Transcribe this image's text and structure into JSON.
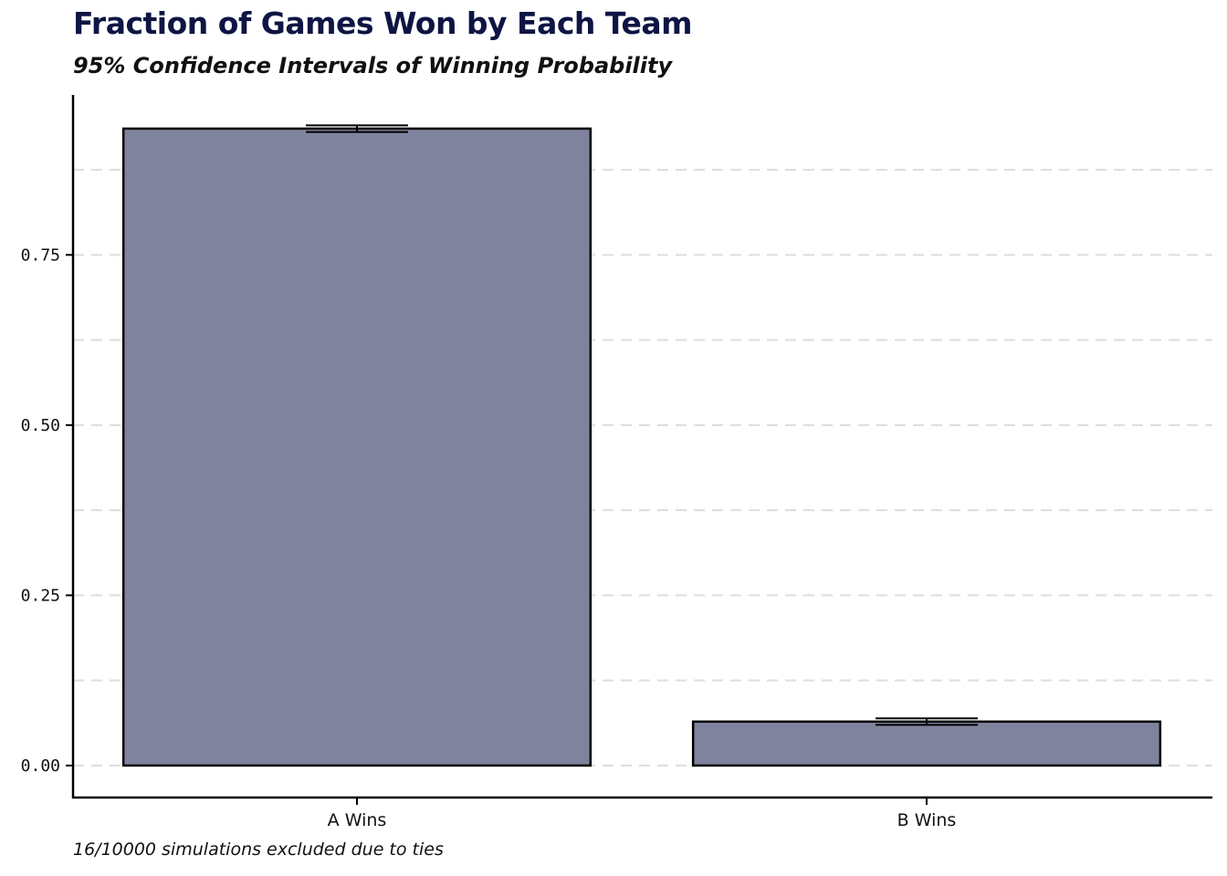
{
  "chart_data": {
    "type": "bar",
    "title": "Fraction of Games Won by Each Team",
    "subtitle": "95% Confidence Intervals of Winning Probability",
    "caption": "16/10000 simulations excluded due to ties",
    "categories": [
      "A Wins",
      "B Wins"
    ],
    "values": [
      0.9355,
      0.0645
    ],
    "ci_lower": [
      0.9305,
      0.0597
    ],
    "ci_upper": [
      0.9403,
      0.0693
    ],
    "ylim": [
      -0.047,
      0.985
    ],
    "yticks": [
      0.0,
      0.25,
      0.5,
      0.75
    ],
    "ytick_labels": [
      "0.00",
      "0.25",
      "0.50",
      "0.75"
    ],
    "minor_gridlines": [
      0.125,
      0.375,
      0.625,
      0.875
    ],
    "grid": "horizontal dashed",
    "bar_fill": "#7f839d",
    "bar_stroke": "#000000",
    "title_color": "#0e1544",
    "gridline_color": "#dddddd"
  }
}
